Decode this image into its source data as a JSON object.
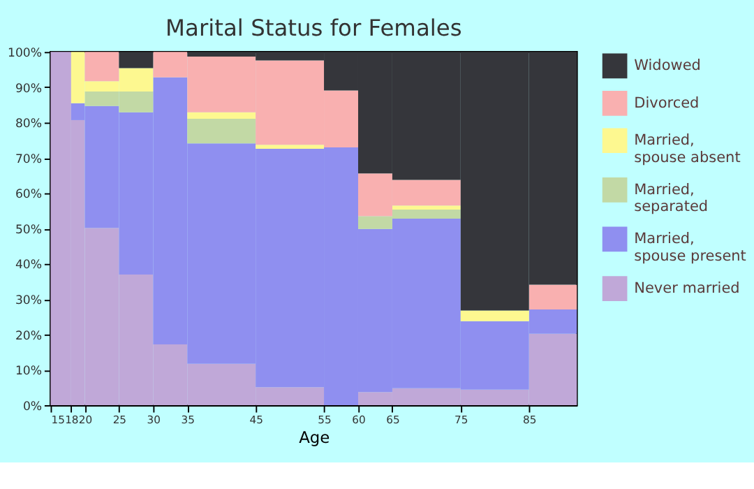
{
  "chart_data": {
    "type": "bar",
    "stacked": true,
    "title": "Marital Status for Females",
    "xlabel": "Age",
    "x": [
      16.5,
      19,
      22.5,
      27.5,
      32.5,
      40,
      50,
      57.5,
      62.5,
      70,
      80,
      88.5
    ],
    "xlim": [
      15,
      92
    ],
    "xticks": [
      15,
      18,
      20,
      25,
      30,
      35,
      45,
      55,
      60,
      65,
      75,
      85
    ],
    "ylim": [
      0,
      100
    ],
    "yticks": [
      {
        "value": 0,
        "label": "0%"
      },
      {
        "value": 10,
        "label": "10%"
      },
      {
        "value": 20,
        "label": "20%"
      },
      {
        "value": 30,
        "label": "30%"
      },
      {
        "value": 40,
        "label": "40%"
      },
      {
        "value": 50,
        "label": "50%"
      },
      {
        "value": 60,
        "label": "60%"
      },
      {
        "value": 70,
        "label": "70%"
      },
      {
        "value": 80,
        "label": "80%"
      },
      {
        "value": 90,
        "label": "90%"
      },
      {
        "value": 100,
        "label": "100%"
      }
    ],
    "grid": false,
    "legend": "right",
    "series": [
      {
        "name": "Never married",
        "color": "#c0a8d8",
        "values": [
          100,
          80.7,
          50.2,
          37.0,
          17.2,
          11.7,
          5.1,
          null,
          3.7,
          4.8,
          4.4,
          20.2
        ]
      },
      {
        "name": "Married, spouse present",
        "color": "#8f8ff0",
        "values": [
          null,
          4.8,
          34.5,
          45.9,
          75.6,
          62.4,
          67.5,
          73.0,
          46.2,
          48.0,
          19.4,
          6.9
        ]
      },
      {
        "name": "Married, separated",
        "color": "#c2d9a5",
        "values": [
          null,
          null,
          4.1,
          5.9,
          null,
          7.0,
          null,
          null,
          3.6,
          2.6,
          null,
          null
        ]
      },
      {
        "name": "Married, spouse absent",
        "color": "#fdf890",
        "values": [
          null,
          14.5,
          2.9,
          6.6,
          null,
          1.8,
          1.1,
          null,
          null,
          1.1,
          3.0,
          null
        ]
      },
      {
        "name": "Divorced",
        "color": "#f9b0b0",
        "values": [
          null,
          null,
          8.3,
          null,
          7.2,
          15.8,
          23.9,
          16.1,
          12.1,
          7.3,
          null,
          7.0
        ]
      },
      {
        "name": "Widowed",
        "color": "#35363b",
        "values": [
          null,
          null,
          null,
          4.6,
          null,
          1.3,
          2.4,
          10.9,
          34.4,
          36.2,
          73.2,
          65.9
        ]
      }
    ]
  }
}
